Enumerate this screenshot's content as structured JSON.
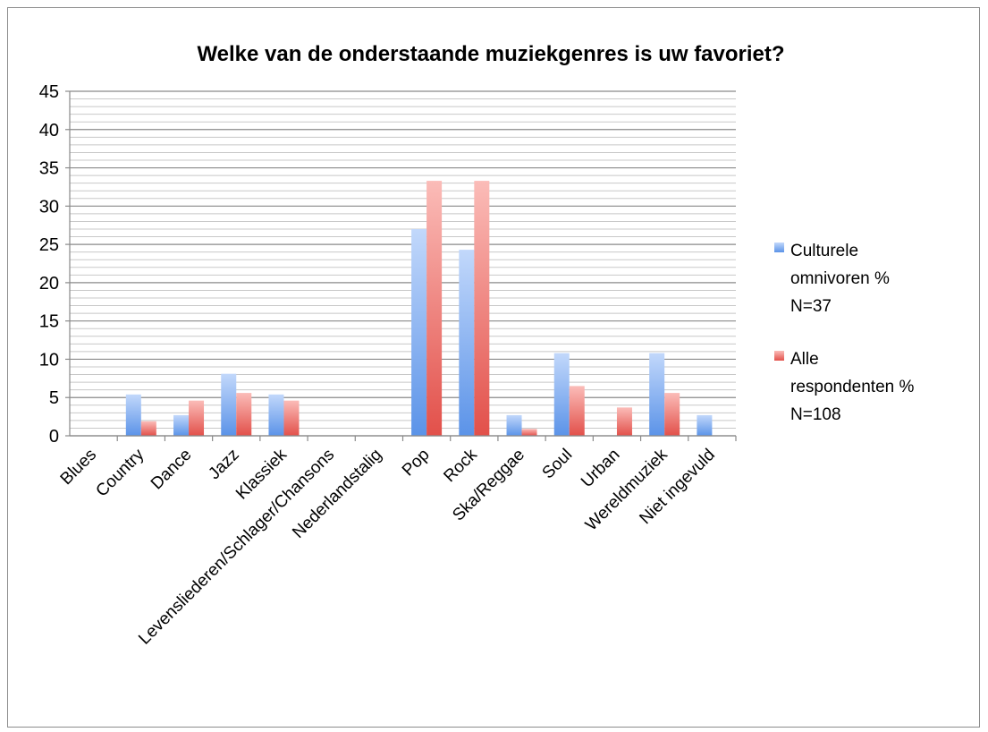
{
  "chart_data": {
    "type": "bar",
    "title": "Welke van de onderstaande muziekgenres is uw favoriet?",
    "xlabel": "",
    "ylabel": "",
    "ylim": [
      0,
      45
    ],
    "y_major_step": 5,
    "y_minor_step": 1,
    "grid": true,
    "legend_position": "right",
    "categories": [
      "Blues",
      "Country",
      "Dance",
      "Jazz",
      "Klassiek",
      "Levensliederen/Schlager/Chansons",
      "Nederlandstalig",
      "Pop",
      "Rock",
      "Ska/Reggae",
      "Soul",
      "Urban",
      "Wereldmuziek",
      "Niet ingevuld"
    ],
    "series": [
      {
        "name_lines": [
          "Culturele",
          "omnivoren %",
          "N=37"
        ],
        "color_light": "#c2d8fb",
        "color_dark": "#5b93e8",
        "values": [
          0,
          5.4,
          2.7,
          8.1,
          5.4,
          0,
          0,
          27.0,
          24.3,
          2.7,
          10.8,
          0,
          10.8,
          2.7
        ]
      },
      {
        "name_lines": [
          "Alle",
          "respondenten %",
          "N=108"
        ],
        "color_light": "#fbbcb8",
        "color_dark": "#e2504a",
        "values": [
          0,
          1.9,
          4.6,
          5.6,
          4.6,
          0,
          0,
          33.3,
          33.3,
          0.9,
          6.5,
          3.7,
          5.6,
          0
        ]
      }
    ]
  }
}
